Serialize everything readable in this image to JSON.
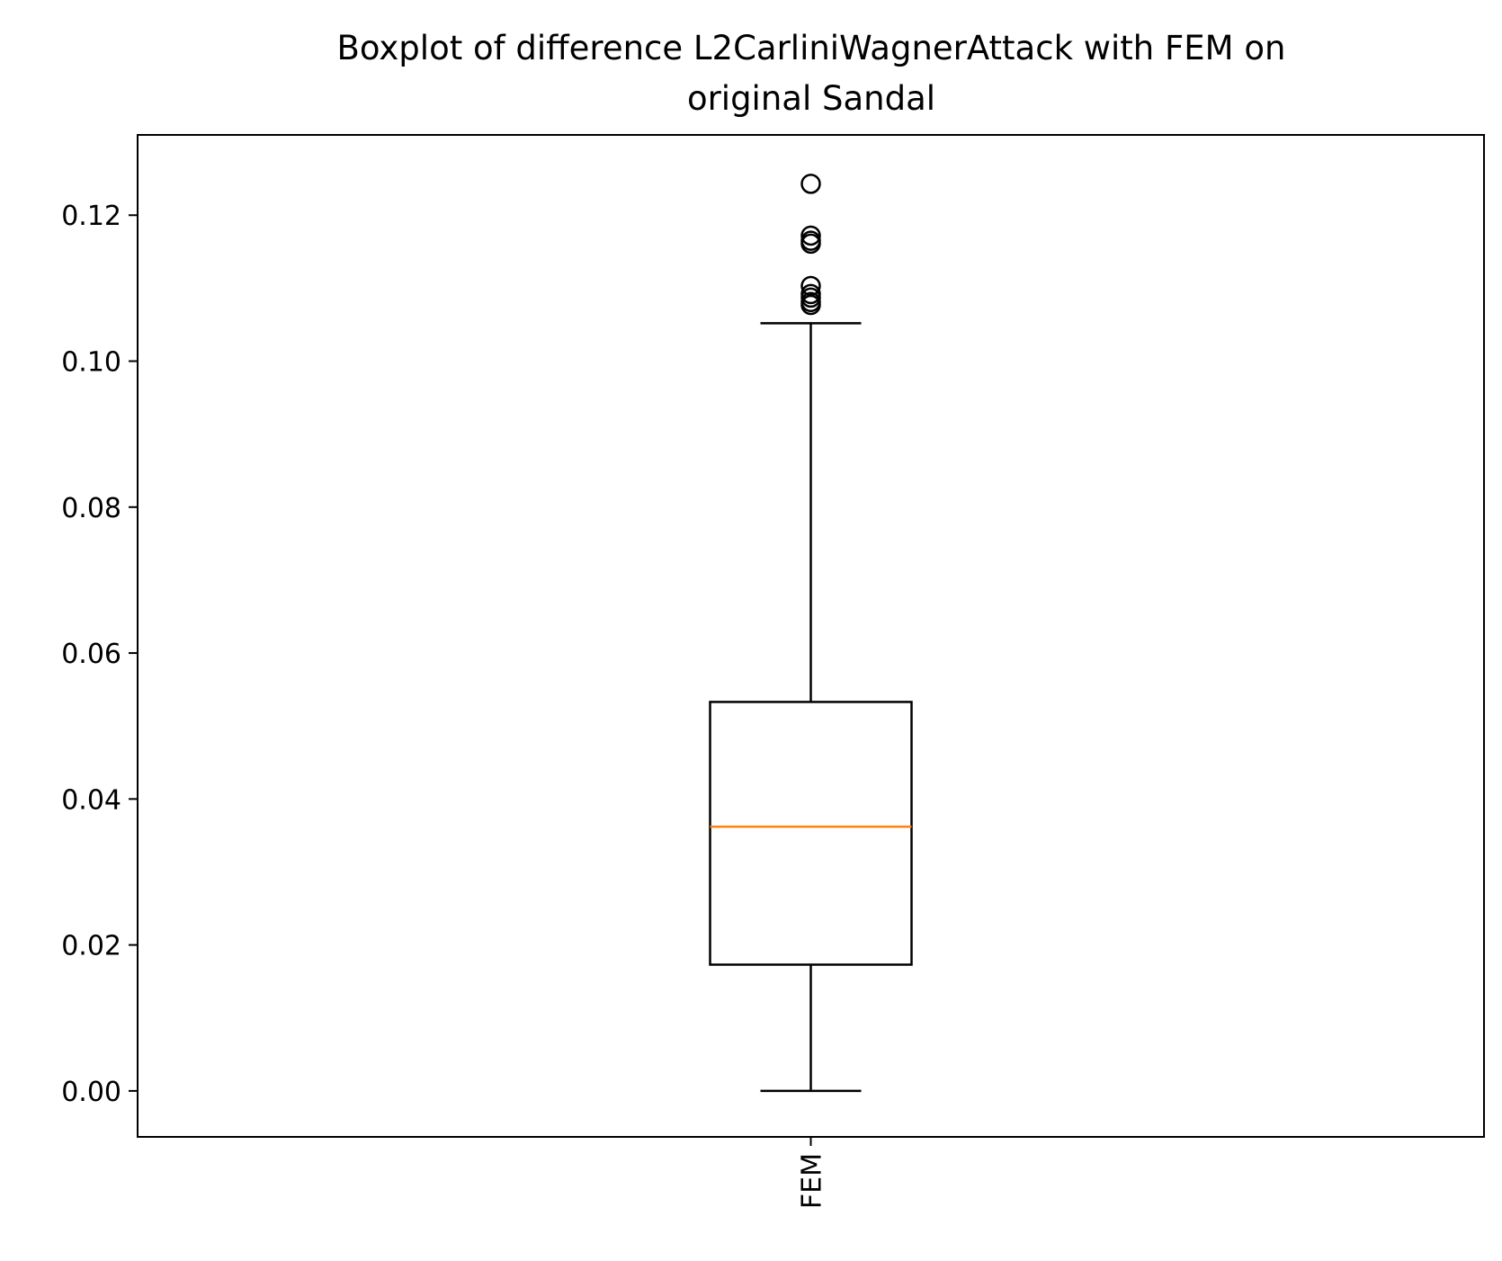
{
  "chart_data": {
    "type": "boxplot",
    "title_lines": [
      "Boxplot of difference L2CarliniWagnerAttack with FEM on",
      "original Sandal"
    ],
    "categories": [
      "FEM"
    ],
    "ylim": [
      -0.0063,
      0.131
    ],
    "y_ticks": [
      0.0,
      0.02,
      0.04,
      0.06,
      0.08,
      0.1,
      0.12
    ],
    "y_tick_labels": [
      "0.00",
      "0.02",
      "0.04",
      "0.06",
      "0.08",
      "0.10",
      "0.12"
    ],
    "x_tick_rotation": "vertical",
    "grid": false,
    "boxes": [
      {
        "category": "FEM",
        "whisker_low": 0.0,
        "q1": 0.0173,
        "median": 0.0362,
        "q3": 0.0533,
        "whisker_high": 0.1052,
        "outliers": [
          0.1243,
          0.1172,
          0.1165,
          0.1161,
          0.1103,
          0.1092,
          0.1087,
          0.1081,
          0.1077
        ]
      }
    ],
    "colors": {
      "box": "#000000",
      "median": "#ff7f0e",
      "outlier_edge": "#000000"
    }
  }
}
